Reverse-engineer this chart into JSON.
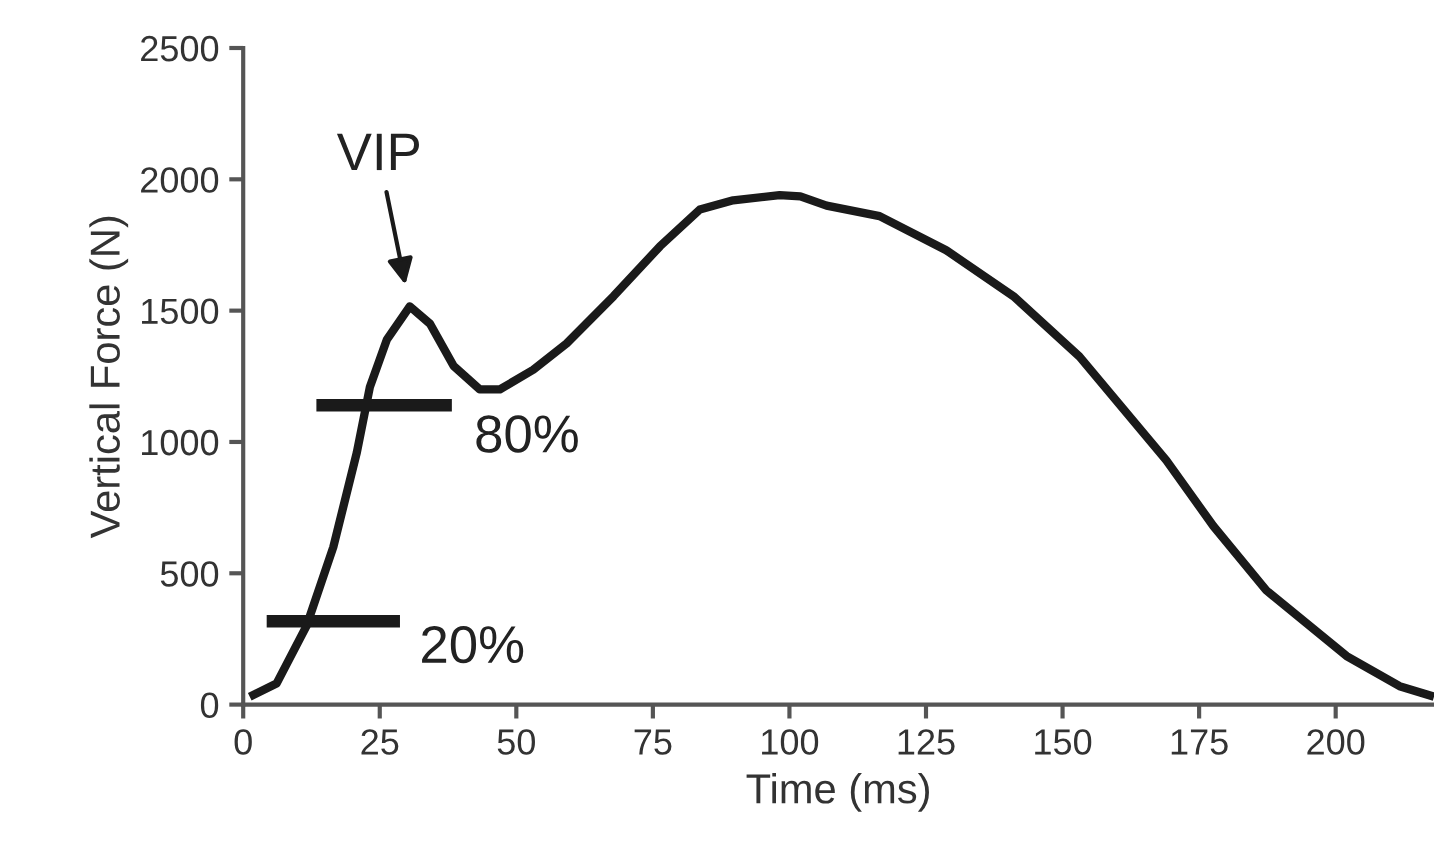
{
  "chart_data": {
    "type": "line",
    "xlabel": "Time (ms)",
    "ylabel": "Vertical Force (N)",
    "xlim": [
      0,
      218
    ],
    "ylim": [
      0,
      2500
    ],
    "xticks": [
      0,
      25,
      50,
      75,
      100,
      125,
      150,
      175,
      200
    ],
    "yticks": [
      0,
      500,
      1000,
      1500,
      2000,
      2500
    ],
    "grid": false,
    "legend": false,
    "marker": "none",
    "line_style": "solid",
    "series": [
      {
        "color": "#1a1a1a",
        "x": [
          1.2,
          6.1,
          11.6,
          16.5,
          20.8,
          23.2,
          26.3,
          30.5,
          34.2,
          38.5,
          43.3,
          47,
          53.1,
          59.2,
          67.8,
          76.3,
          83.6,
          89.7,
          98.2,
          102,
          106.8,
          116.5,
          128.7,
          141,
          153.1,
          169,
          177.6,
          187.3,
          202,
          211.7,
          218
        ],
        "values": [
          30,
          80,
          300,
          600,
          960,
          1210,
          1390,
          1516,
          1450,
          1290,
          1200,
          1200,
          1275,
          1375,
          1555,
          1745,
          1885,
          1920,
          1940,
          1935,
          1900,
          1860,
          1730,
          1555,
          1325,
          930,
          680,
          435,
          185,
          70,
          30
        ]
      },
      {
        "color": "#1a1a1a",
        "x": [
          4.3,
          28.7
        ],
        "values": [
          317,
          317
        ]
      },
      {
        "color": "#1a1a1a",
        "x": [
          13.4,
          38.2
        ],
        "values": [
          1140,
          1140
        ]
      }
    ],
    "annotations": [
      {
        "text": "VIP",
        "x": 30.5,
        "y": 1516
      },
      {
        "text": "20%",
        "x": 28.7,
        "y": 317
      },
      {
        "text": "80%",
        "x": 38.2,
        "y": 1140
      }
    ]
  }
}
